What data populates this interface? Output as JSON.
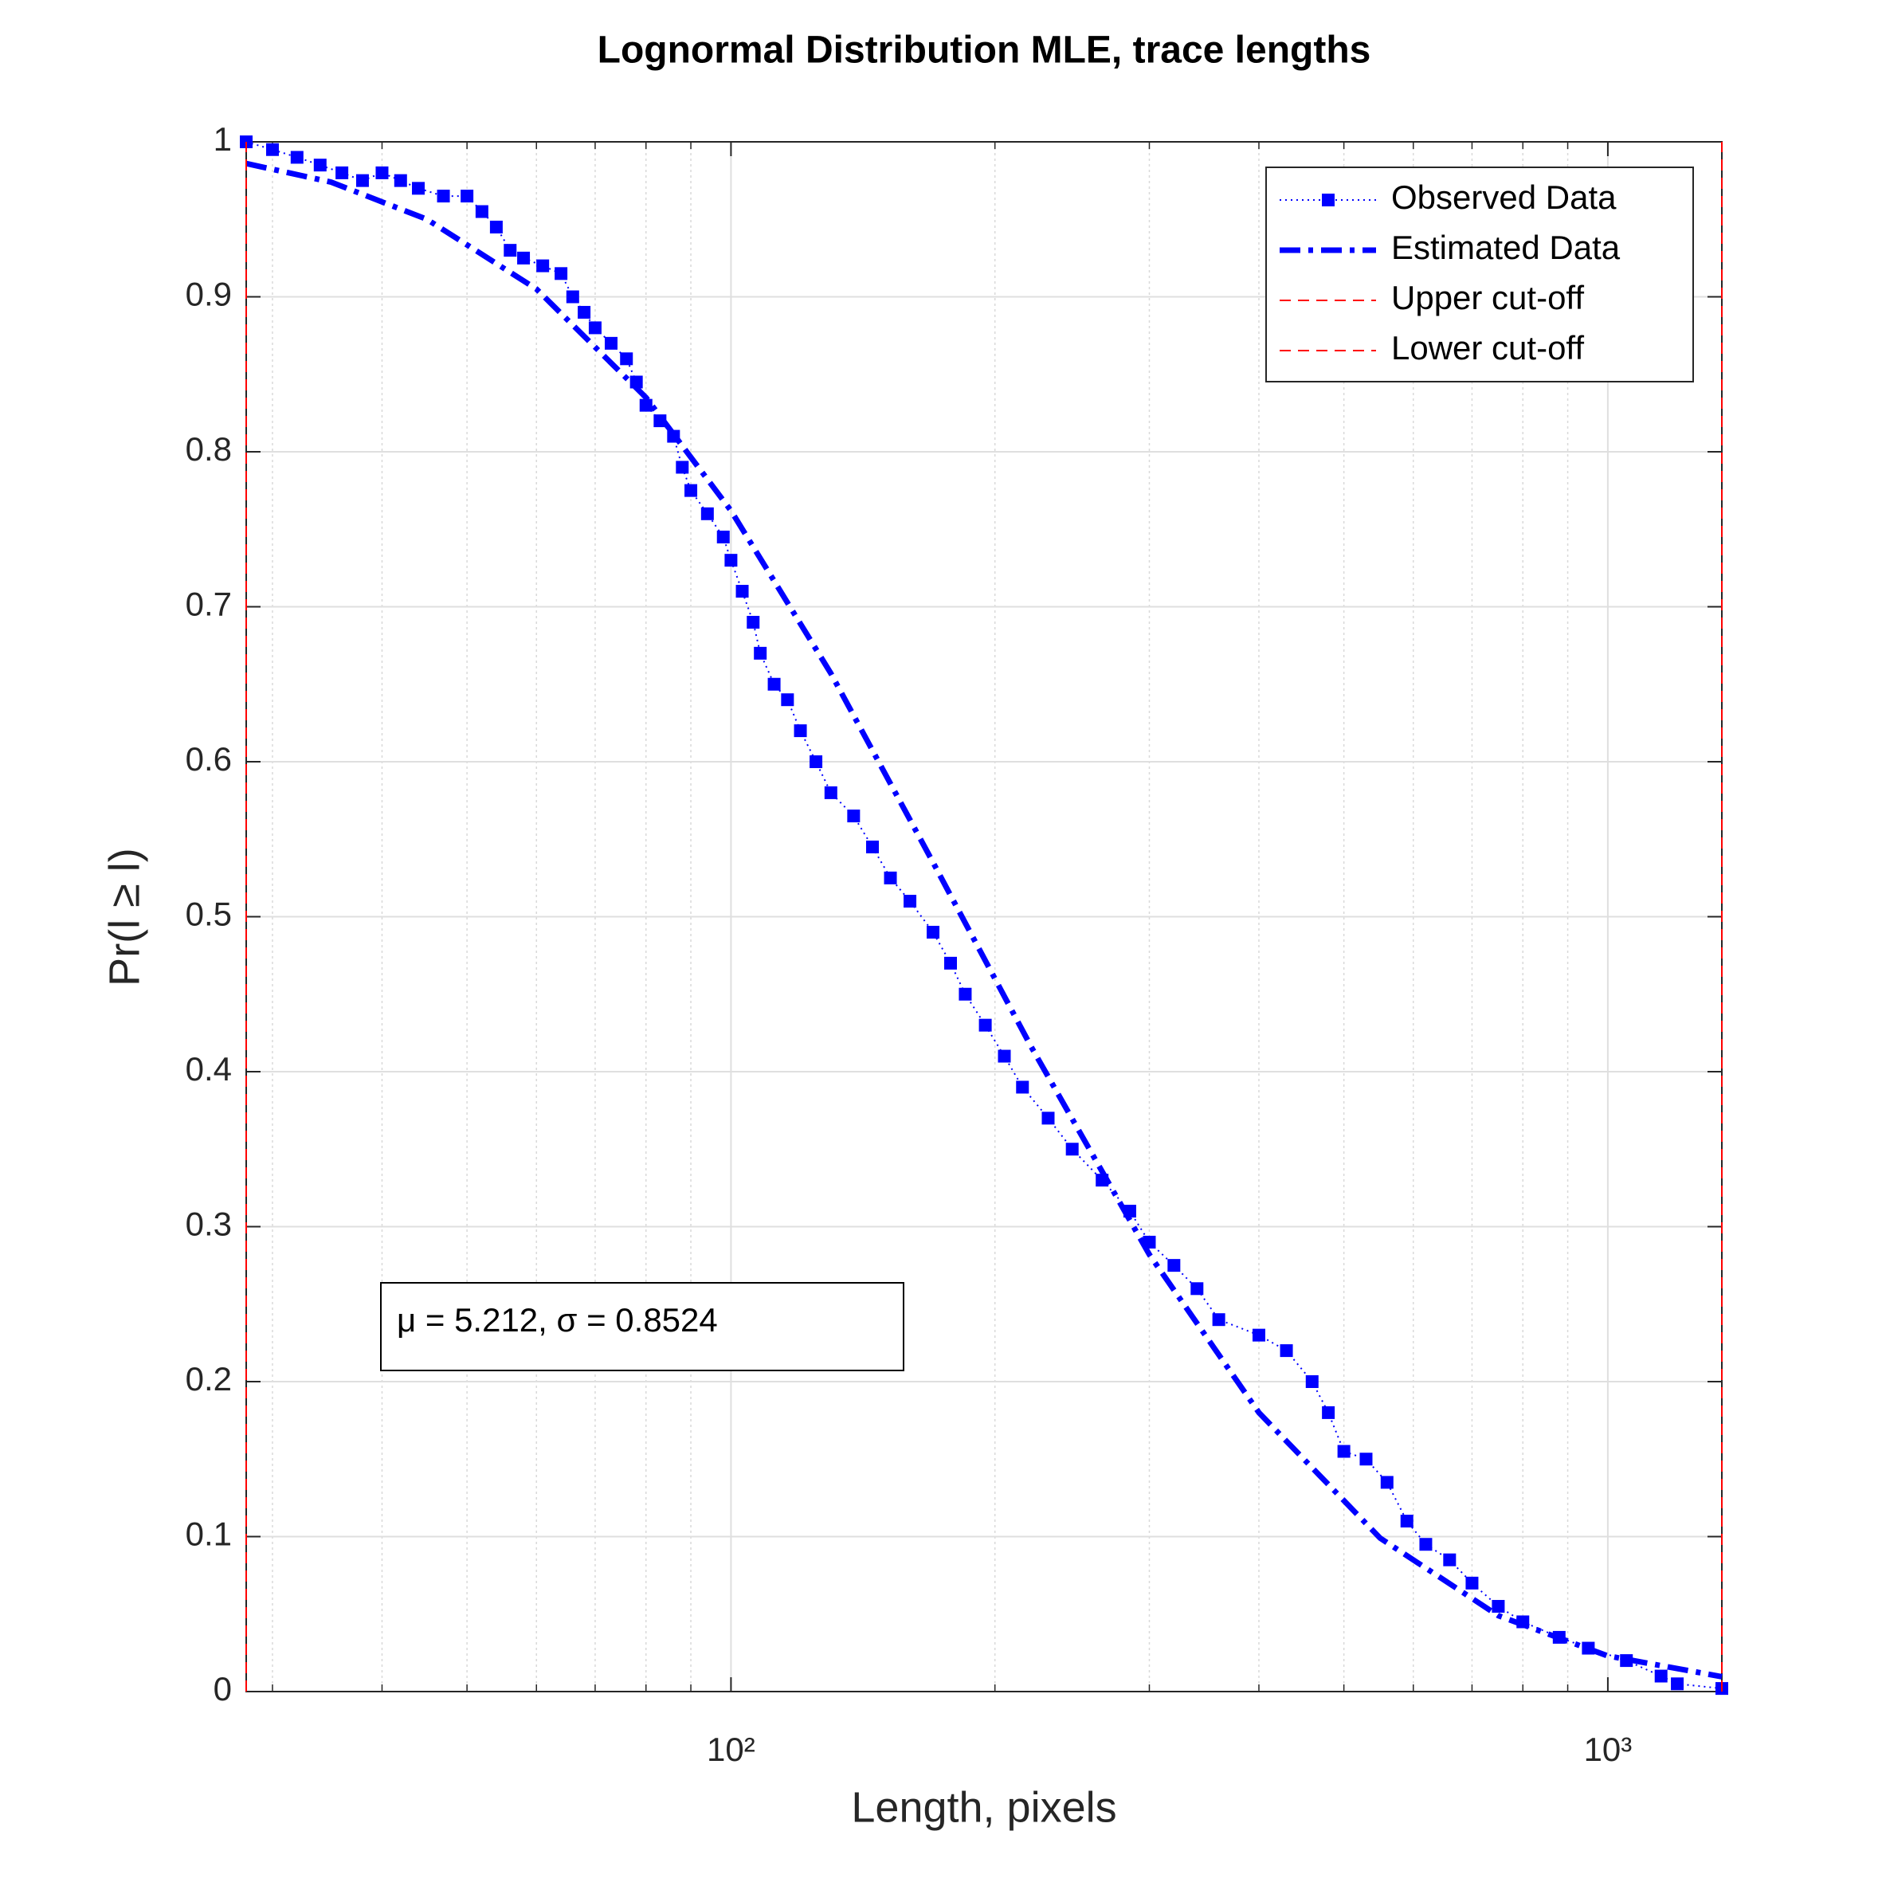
{
  "chart_data": {
    "type": "line",
    "title": "Lognormal Distribution MLE, trace lengths",
    "xlabel": "Length, pixels",
    "ylabel": "Pr(l ≥ l)",
    "xscale": "log",
    "grid": true,
    "legend": "upper right",
    "annotation": "μ = 5.212, σ = 0.8524",
    "xlim": [
      28,
      1349
    ],
    "ylim": [
      0,
      1
    ],
    "xticks": [
      {
        "value": 100,
        "label": "10²"
      },
      {
        "value": 1000,
        "label": "10³"
      }
    ],
    "xminorticks": [
      30,
      40,
      50,
      60,
      70,
      80,
      90,
      200,
      300,
      400,
      500,
      600,
      700,
      800,
      900
    ],
    "yticks": [
      0,
      0.1,
      0.2,
      0.3,
      0.4,
      0.5,
      0.6,
      0.7,
      0.8,
      0.9,
      1
    ],
    "series": [
      {
        "name": "Observed Data",
        "color": "#0000ff",
        "style": "dotted-square",
        "x": [
          28,
          30,
          32,
          34,
          36,
          38,
          40,
          42,
          44,
          47,
          50,
          52,
          54,
          56,
          58,
          61,
          64,
          66,
          68,
          70,
          73,
          76,
          78,
          80,
          83,
          86,
          88,
          90,
          94,
          98,
          100,
          103,
          106,
          108,
          112,
          116,
          120,
          125,
          130,
          138,
          145,
          152,
          160,
          170,
          178,
          185,
          195,
          205,
          215,
          230,
          245,
          265,
          285,
          300,
          320,
          340,
          360,
          400,
          430,
          460,
          480,
          500,
          530,
          560,
          590,
          620,
          660,
          700,
          750,
          800,
          880,
          950,
          1050,
          1150,
          1200,
          1349
        ],
        "values": [
          1.0,
          0.995,
          0.99,
          0.985,
          0.98,
          0.975,
          0.98,
          0.975,
          0.97,
          0.965,
          0.965,
          0.955,
          0.945,
          0.93,
          0.925,
          0.92,
          0.915,
          0.9,
          0.89,
          0.88,
          0.87,
          0.86,
          0.845,
          0.83,
          0.82,
          0.81,
          0.79,
          0.775,
          0.76,
          0.745,
          0.73,
          0.71,
          0.69,
          0.67,
          0.65,
          0.64,
          0.62,
          0.6,
          0.58,
          0.565,
          0.545,
          0.525,
          0.51,
          0.49,
          0.47,
          0.45,
          0.43,
          0.41,
          0.39,
          0.37,
          0.35,
          0.33,
          0.31,
          0.29,
          0.275,
          0.26,
          0.24,
          0.23,
          0.22,
          0.2,
          0.18,
          0.155,
          0.15,
          0.135,
          0.11,
          0.095,
          0.085,
          0.07,
          0.055,
          0.045,
          0.035,
          0.028,
          0.02,
          0.01,
          0.005,
          0.002
        ]
      },
      {
        "name": "Estimated Data",
        "color": "#0000ff",
        "style": "dashdot",
        "x": [
          28,
          35,
          45,
          60,
          80,
          100,
          130,
          170,
          220,
          300,
          400,
          550,
          750,
          1000,
          1349
        ],
        "values": [
          0.986,
          0.974,
          0.95,
          0.905,
          0.835,
          0.762,
          0.657,
          0.535,
          0.416,
          0.282,
          0.18,
          0.099,
          0.049,
          0.023,
          0.0096
        ]
      },
      {
        "name": "Upper cut-off",
        "color": "#ff0000",
        "style": "dashed",
        "x": [
          1349,
          1349
        ],
        "values": [
          0,
          1
        ]
      },
      {
        "name": "Lower cut-off",
        "color": "#ff0000",
        "style": "dashed",
        "x": [
          28,
          28
        ],
        "values": [
          0,
          1
        ]
      }
    ]
  }
}
